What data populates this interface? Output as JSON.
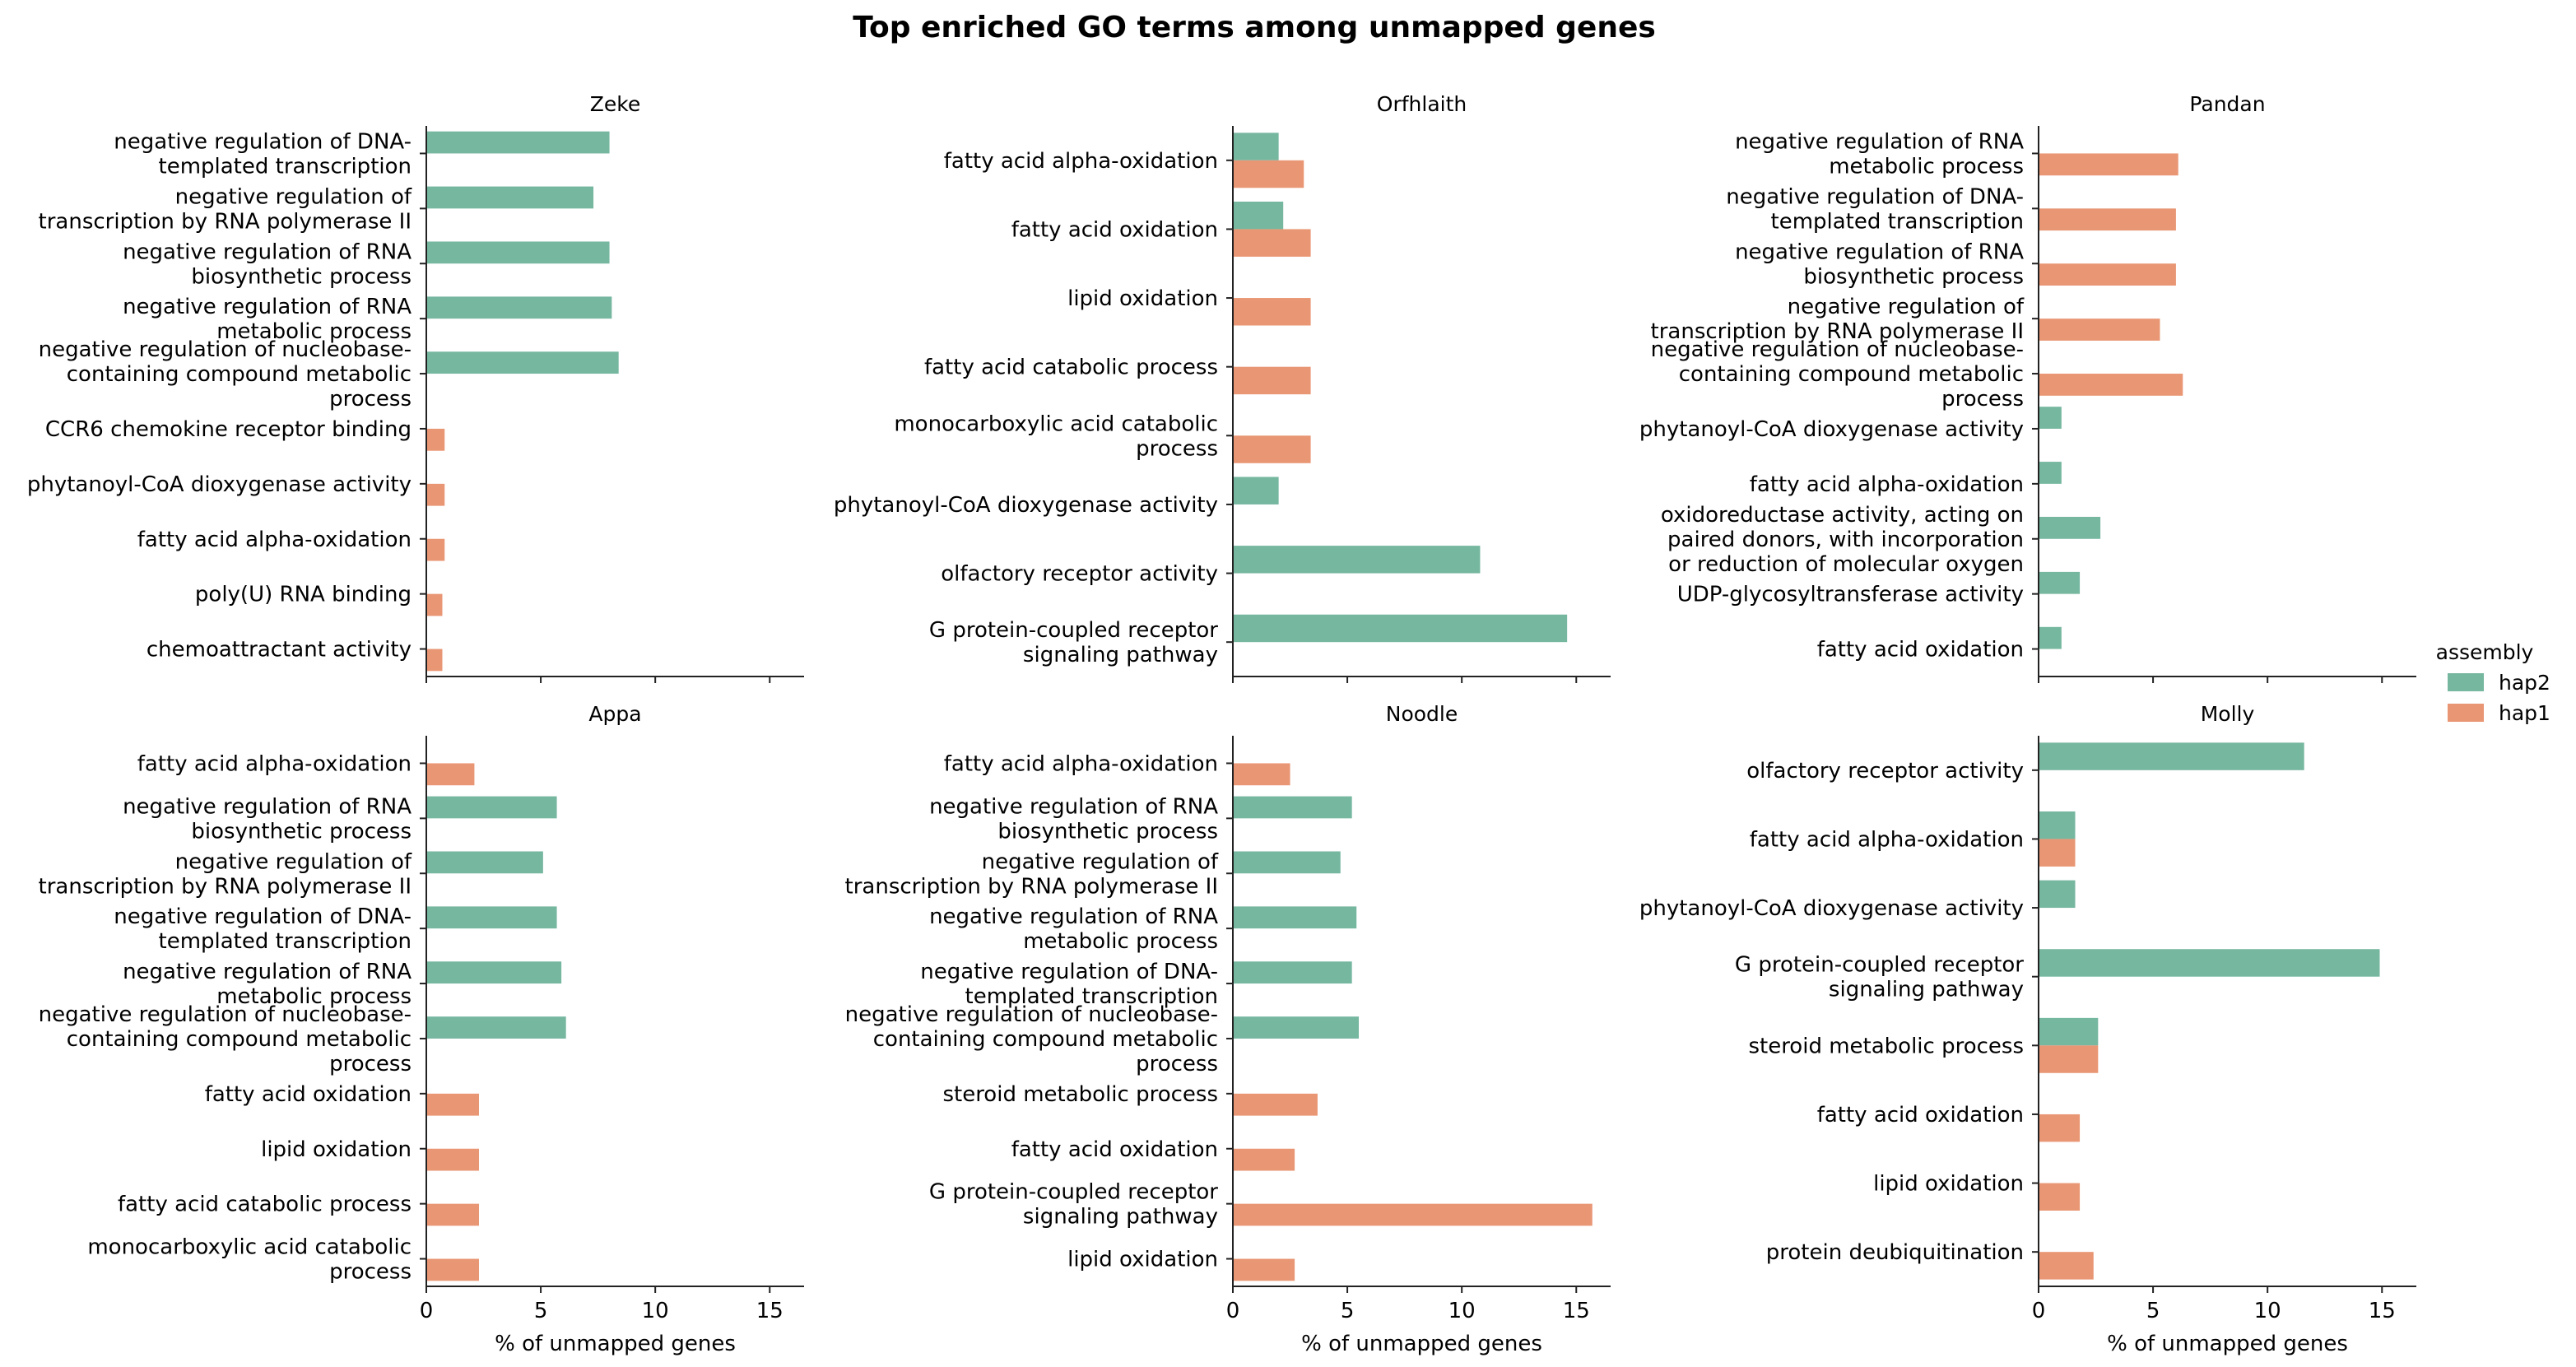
{
  "figure_title": "Top enriched GO terms among unmapped genes",
  "legend": {
    "title": "assembly",
    "entries": [
      {
        "name": "hap2",
        "color": "#76b7a0"
      },
      {
        "name": "hap1",
        "color": "#e99674"
      }
    ]
  },
  "chart_data": [
    {
      "type": "bar",
      "title": "Zeke",
      "orientation": "horizontal",
      "xlabel": "",
      "xlim": [
        0,
        16.5
      ],
      "xticks": [
        0,
        5,
        10,
        15
      ],
      "show_tick_labels": false,
      "categories": [
        [
          "negative regulation of DNA-",
          "templated transcription"
        ],
        [
          "negative regulation of",
          "transcription by RNA polymerase II"
        ],
        [
          "negative regulation of RNA",
          "biosynthetic process"
        ],
        [
          "negative regulation of RNA",
          "metabolic process"
        ],
        [
          "negative regulation of nucleobase-",
          "containing compound metabolic",
          "process"
        ],
        [
          "CCR6 chemokine receptor binding"
        ],
        [
          "phytanoyl-CoA dioxygenase activity"
        ],
        [
          "fatty acid alpha-oxidation"
        ],
        [
          "poly(U) RNA binding"
        ],
        [
          "chemoattractant activity"
        ]
      ],
      "series": [
        {
          "name": "hap2",
          "values": [
            8.0,
            7.3,
            8.0,
            8.1,
            8.4,
            null,
            null,
            null,
            null,
            null
          ]
        },
        {
          "name": "hap1",
          "values": [
            null,
            null,
            null,
            null,
            null,
            0.8,
            0.8,
            0.8,
            0.7,
            0.7
          ]
        }
      ]
    },
    {
      "type": "bar",
      "title": "Orfhlaith",
      "orientation": "horizontal",
      "xlabel": "",
      "xlim": [
        0,
        16.5
      ],
      "xticks": [
        0,
        5,
        10,
        15
      ],
      "show_tick_labels": false,
      "categories": [
        [
          "fatty acid alpha-oxidation"
        ],
        [
          "fatty acid oxidation"
        ],
        [
          "lipid oxidation"
        ],
        [
          "fatty acid catabolic process"
        ],
        [
          "monocarboxylic acid catabolic",
          "process"
        ],
        [
          "phytanoyl-CoA dioxygenase activity"
        ],
        [
          "olfactory receptor activity"
        ],
        [
          "G protein-coupled receptor",
          "signaling pathway"
        ]
      ],
      "series": [
        {
          "name": "hap2",
          "values": [
            2.0,
            2.2,
            null,
            null,
            null,
            2.0,
            10.8,
            14.6
          ]
        },
        {
          "name": "hap1",
          "values": [
            3.1,
            3.4,
            3.4,
            3.4,
            3.4,
            null,
            null,
            null
          ]
        }
      ]
    },
    {
      "type": "bar",
      "title": "Pandan",
      "orientation": "horizontal",
      "xlabel": "",
      "xlim": [
        0,
        16.5
      ],
      "xticks": [
        0,
        5,
        10,
        15
      ],
      "show_tick_labels": false,
      "categories": [
        [
          "negative regulation of RNA",
          "metabolic process"
        ],
        [
          "negative regulation of DNA-",
          "templated transcription"
        ],
        [
          "negative regulation of RNA",
          "biosynthetic process"
        ],
        [
          "negative regulation of",
          "transcription by RNA polymerase II"
        ],
        [
          "negative regulation of nucleobase-",
          "containing compound metabolic",
          "process"
        ],
        [
          "phytanoyl-CoA dioxygenase activity"
        ],
        [
          "fatty acid alpha-oxidation"
        ],
        [
          "oxidoreductase activity, acting on",
          "paired donors, with incorporation",
          "or reduction of molecular oxygen"
        ],
        [
          "UDP-glycosyltransferase activity"
        ],
        [
          "fatty acid oxidation"
        ]
      ],
      "series": [
        {
          "name": "hap2",
          "values": [
            null,
            null,
            null,
            null,
            null,
            1.0,
            1.0,
            2.7,
            1.8,
            1.0
          ]
        },
        {
          "name": "hap1",
          "values": [
            6.1,
            6.0,
            6.0,
            5.3,
            6.3,
            null,
            null,
            null,
            null,
            null
          ]
        }
      ]
    },
    {
      "type": "bar",
      "title": "Appa",
      "orientation": "horizontal",
      "xlabel": "% of unmapped genes",
      "xlim": [
        0,
        16.5
      ],
      "xticks": [
        0,
        5,
        10,
        15
      ],
      "show_tick_labels": true,
      "categories": [
        [
          "fatty acid alpha-oxidation"
        ],
        [
          "negative regulation of RNA",
          "biosynthetic process"
        ],
        [
          "negative regulation of",
          "transcription by RNA polymerase II"
        ],
        [
          "negative regulation of DNA-",
          "templated transcription"
        ],
        [
          "negative regulation of RNA",
          "metabolic process"
        ],
        [
          "negative regulation of nucleobase-",
          "containing compound metabolic",
          "process"
        ],
        [
          "fatty acid oxidation"
        ],
        [
          "lipid oxidation"
        ],
        [
          "fatty acid catabolic process"
        ],
        [
          "monocarboxylic acid catabolic",
          "process"
        ]
      ],
      "series": [
        {
          "name": "hap2",
          "values": [
            null,
            5.7,
            5.1,
            5.7,
            5.9,
            6.1,
            null,
            null,
            null,
            null
          ]
        },
        {
          "name": "hap1",
          "values": [
            2.1,
            null,
            null,
            null,
            null,
            null,
            2.3,
            2.3,
            2.3,
            2.3
          ]
        }
      ]
    },
    {
      "type": "bar",
      "title": "Noodle",
      "orientation": "horizontal",
      "xlabel": "% of unmapped genes",
      "xlim": [
        0,
        16.5
      ],
      "xticks": [
        0,
        5,
        10,
        15
      ],
      "show_tick_labels": true,
      "categories": [
        [
          "fatty acid alpha-oxidation"
        ],
        [
          "negative regulation of RNA",
          "biosynthetic process"
        ],
        [
          "negative regulation of",
          "transcription by RNA polymerase II"
        ],
        [
          "negative regulation of RNA",
          "metabolic process"
        ],
        [
          "negative regulation of DNA-",
          "templated transcription"
        ],
        [
          "negative regulation of nucleobase-",
          "containing compound metabolic",
          "process"
        ],
        [
          "steroid metabolic process"
        ],
        [
          "fatty acid oxidation"
        ],
        [
          "G protein-coupled receptor",
          "signaling pathway"
        ],
        [
          "lipid oxidation"
        ]
      ],
      "series": [
        {
          "name": "hap2",
          "values": [
            null,
            5.2,
            4.7,
            5.4,
            5.2,
            5.5,
            null,
            null,
            null,
            null
          ]
        },
        {
          "name": "hap1",
          "values": [
            2.5,
            null,
            null,
            null,
            null,
            null,
            3.7,
            2.7,
            15.7,
            2.7
          ]
        }
      ]
    },
    {
      "type": "bar",
      "title": "Molly",
      "orientation": "horizontal",
      "xlabel": "% of unmapped genes",
      "xlim": [
        0,
        16.5
      ],
      "xticks": [
        0,
        5,
        10,
        15
      ],
      "show_tick_labels": true,
      "categories": [
        [
          "olfactory receptor activity"
        ],
        [
          "fatty acid alpha-oxidation"
        ],
        [
          "phytanoyl-CoA dioxygenase activity"
        ],
        [
          "G protein-coupled receptor",
          "signaling pathway"
        ],
        [
          "steroid metabolic process"
        ],
        [
          "fatty acid oxidation"
        ],
        [
          "lipid oxidation"
        ],
        [
          "protein deubiquitination"
        ]
      ],
      "series": [
        {
          "name": "hap2",
          "values": [
            11.6,
            1.6,
            1.6,
            14.9,
            2.6,
            null,
            null,
            null
          ]
        },
        {
          "name": "hap1",
          "values": [
            null,
            1.6,
            null,
            null,
            2.6,
            1.8,
            1.8,
            2.4
          ]
        }
      ]
    }
  ]
}
